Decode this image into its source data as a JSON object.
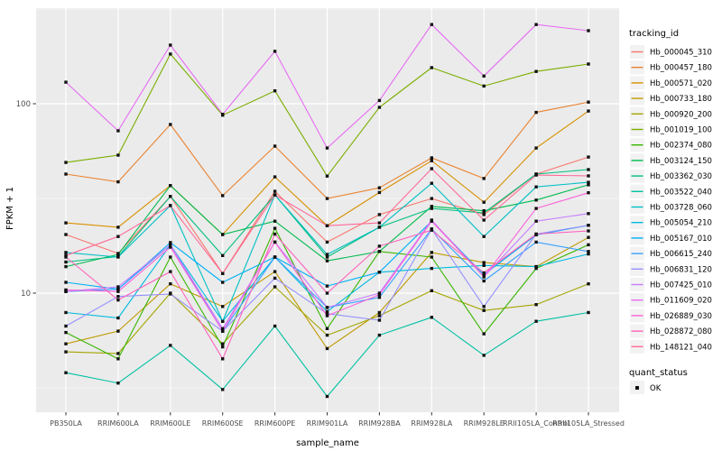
{
  "chart_data": {
    "type": "line",
    "title": "",
    "xlabel": "sample_name",
    "ylabel": "FPKM + 1",
    "y_scale": "log10",
    "y_tick_labels": [
      "100",
      "10"
    ],
    "y_tick_values": [
      100,
      10
    ],
    "y_minor_values": [
      3.162,
      31.62,
      316.2
    ],
    "ylim": [
      2.35,
      330
    ],
    "grid": "on",
    "legend_position": "right",
    "categories": [
      "PB350LA",
      "RRIM600LA",
      "RRIM600LE",
      "RRIM600SE",
      "RRIM600PE",
      "RRIM901LA",
      "RRIM928BA",
      "RRIM928LA",
      "RRIM928LE",
      "RRII105LA_Control",
      "RRII105LA_Stressed"
    ],
    "legend": {
      "title": "tracking_id"
    },
    "legend2": {
      "title": "quant_status",
      "items": [
        "OK"
      ]
    },
    "point_marker": "black-square",
    "colors": {
      "panel_bg": "#EBEBEB",
      "grid_major": "#FFFFFF",
      "grid_minor": "#F7F7F7",
      "tick_text": "#4D4D4D",
      "axis_title": "#000000",
      "point": "#111111",
      "legend_key_bg": "#F2F2F2"
    },
    "series": [
      {
        "name": "Hb_000045_310",
        "color": "#F8766D",
        "values": [
          20.4,
          16.2,
          32.4,
          12.7,
          34.5,
          18.6,
          26.0,
          31.6,
          26.0,
          42.5,
          52.3
        ]
      },
      {
        "name": "Hb_000457_180",
        "color": "#EA8331",
        "values": [
          42.5,
          38.7,
          77.7,
          32.7,
          59.7,
          31.6,
          36.0,
          51.8,
          40.3,
          90.0,
          102.0
        ]
      },
      {
        "name": "Hb_000571_020",
        "color": "#D89000",
        "values": [
          23.5,
          22.3,
          37.0,
          20.4,
          41.1,
          22.7,
          34.0,
          50.0,
          30.2,
          58.4,
          91.5
        ]
      },
      {
        "name": "Hb_000733_180",
        "color": "#C09B00",
        "values": [
          5.4,
          6.3,
          11.2,
          8.5,
          13.0,
          5.1,
          7.9,
          16.4,
          14.5,
          13.8,
          19.7
        ]
      },
      {
        "name": "Hb_000920_200",
        "color": "#A3A500",
        "values": [
          4.9,
          4.8,
          10.0,
          5.4,
          10.8,
          6.0,
          7.6,
          10.3,
          8.1,
          8.7,
          11.2
        ]
      },
      {
        "name": "Hb_001019_100",
        "color": "#7CAE00",
        "values": [
          49.0,
          53.5,
          183.0,
          87.0,
          117.0,
          41.5,
          95.7,
          155.0,
          124.0,
          148.0,
          162.0
        ]
      },
      {
        "name": "Hb_002374_080",
        "color": "#39B600",
        "values": [
          6.2,
          4.5,
          15.5,
          5.2,
          22.0,
          6.5,
          16.6,
          15.5,
          6.1,
          13.5,
          18.0
        ]
      },
      {
        "name": "Hb_003124_150",
        "color": "#00BB4E",
        "values": [
          13.8,
          16.0,
          37.0,
          20.4,
          24.0,
          14.8,
          16.6,
          28.7,
          27.2,
          31.0,
          37.3
        ]
      },
      {
        "name": "Hb_003362_030",
        "color": "#00BF7D",
        "values": [
          14.6,
          15.6,
          32.4,
          15.8,
          33.0,
          15.5,
          22.3,
          28.0,
          26.5,
          42.5,
          44.9
        ]
      },
      {
        "name": "Hb_003522_040",
        "color": "#00C1A3",
        "values": [
          3.8,
          3.35,
          5.3,
          3.1,
          6.7,
          2.85,
          6.0,
          7.45,
          4.7,
          7.1,
          7.9
        ]
      },
      {
        "name": "Hb_003728_060",
        "color": "#00BFC4",
        "values": [
          16.4,
          15.5,
          29.0,
          7.1,
          33.0,
          16.0,
          22.3,
          38.0,
          19.9,
          36.4,
          38.5
        ]
      },
      {
        "name": "Hb_005054_210",
        "color": "#00BAE0",
        "values": [
          7.9,
          7.4,
          18.0,
          7.1,
          15.5,
          8.0,
          12.9,
          13.5,
          14.0,
          13.8,
          16.1
        ]
      },
      {
        "name": "Hb_005167_010",
        "color": "#00B0F6",
        "values": [
          11.4,
          10.5,
          18.5,
          11.4,
          15.5,
          10.9,
          12.9,
          24.0,
          12.5,
          20.3,
          22.8
        ]
      },
      {
        "name": "Hb_006615_240",
        "color": "#35A2FF",
        "values": [
          10.2,
          10.5,
          18.0,
          6.3,
          15.5,
          8.4,
          9.5,
          21.8,
          11.6,
          18.6,
          16.6
        ]
      },
      {
        "name": "Hb_006831_120",
        "color": "#9590FF",
        "values": [
          6.7,
          9.6,
          9.9,
          6.3,
          12.0,
          7.8,
          7.2,
          21.8,
          8.5,
          20.5,
          22.8
        ]
      },
      {
        "name": "Hb_007425_010",
        "color": "#C77CFF",
        "values": [
          10.2,
          10.8,
          18.0,
          6.5,
          18.6,
          8.4,
          10.0,
          24.3,
          12.2,
          24.0,
          26.3
        ]
      },
      {
        "name": "Hb_011609_020",
        "color": "#E76BF3",
        "values": [
          130.0,
          72.0,
          204.0,
          88.0,
          189.0,
          58.4,
          104.0,
          262.0,
          140.0,
          262.0,
          243.0
        ]
      },
      {
        "name": "Hb_026889_030",
        "color": "#FA62DB",
        "values": [
          10.4,
          10.2,
          17.5,
          6.3,
          18.6,
          7.6,
          9.8,
          24.0,
          12.2,
          28.0,
          33.9
        ]
      },
      {
        "name": "Hb_028872_080",
        "color": "#FF62BC",
        "values": [
          15.5,
          9.2,
          13.0,
          4.5,
          20.5,
          10.0,
          17.7,
          21.5,
          12.8,
          20.5,
          21.3
        ]
      },
      {
        "name": "Hb_148121_040",
        "color": "#FF6A98",
        "values": [
          15.8,
          19.9,
          29.0,
          12.7,
          33.0,
          22.7,
          23.5,
          45.4,
          24.3,
          42.0,
          41.6
        ]
      }
    ]
  }
}
